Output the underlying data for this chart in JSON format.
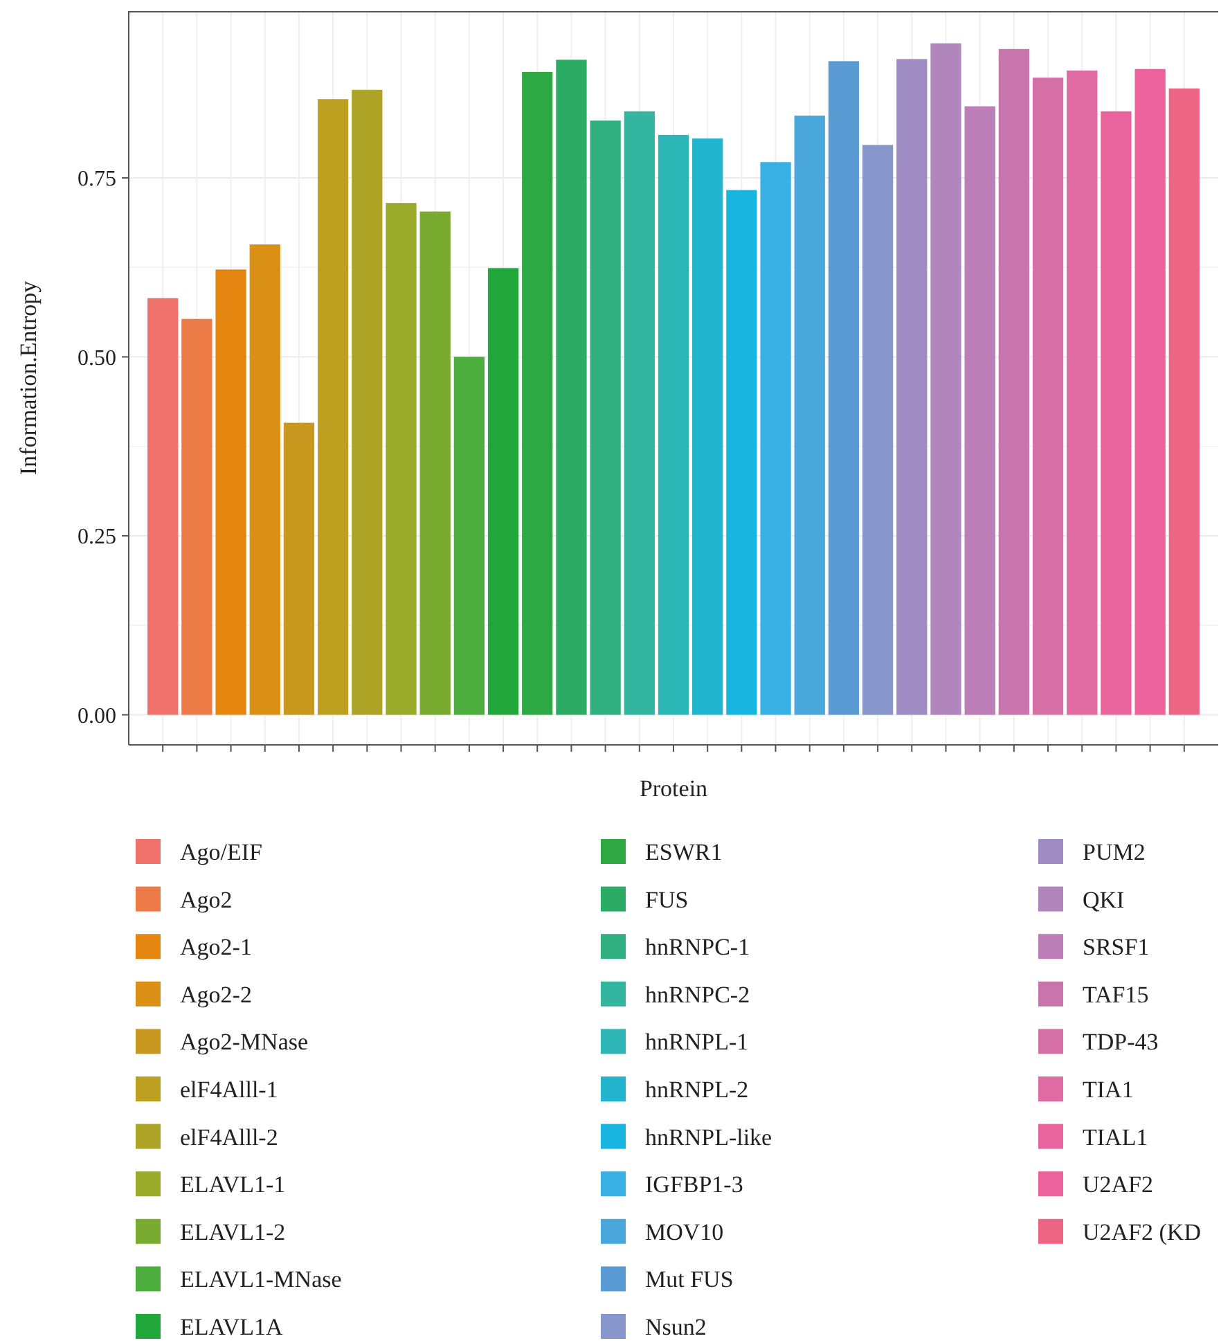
{
  "chart_data": {
    "type": "bar",
    "xlabel": "Protein",
    "ylabel": "Information.Entropy",
    "categories": [
      null,
      null,
      null,
      null,
      null,
      null,
      null,
      null,
      null,
      null,
      null,
      null,
      null,
      null,
      null,
      null,
      null,
      null,
      null,
      null,
      null,
      null,
      null,
      null,
      null,
      null,
      null,
      null,
      null,
      null,
      null
    ],
    "series": [
      {
        "name": "Ago/EIF",
        "color": "#ef716c",
        "values": [
          0.582,
          null,
          null,
          null,
          null,
          null,
          null,
          null,
          null,
          null,
          null,
          null,
          null,
          null,
          null,
          null,
          null,
          null,
          null,
          null,
          null,
          null,
          null,
          null,
          null,
          null,
          null,
          null,
          null,
          null,
          null
        ]
      },
      {
        "name": "Ago2",
        "color": "#ec7b48",
        "values": [
          null,
          0.553,
          null,
          null,
          null,
          null,
          null,
          null,
          null,
          null,
          null,
          null,
          null,
          null,
          null,
          null,
          null,
          null,
          null,
          null,
          null,
          null,
          null,
          null,
          null,
          null,
          null,
          null,
          null,
          null,
          null
        ]
      },
      {
        "name": "Ago2-1",
        "color": "#e4850f",
        "values": [
          null,
          null,
          0.622,
          null,
          null,
          null,
          null,
          null,
          null,
          null,
          null,
          null,
          null,
          null,
          null,
          null,
          null,
          null,
          null,
          null,
          null,
          null,
          null,
          null,
          null,
          null,
          null,
          null,
          null,
          null,
          null
        ]
      },
      {
        "name": "Ago2-2",
        "color": "#da8f15",
        "values": [
          null,
          null,
          null,
          0.657,
          null,
          null,
          null,
          null,
          null,
          null,
          null,
          null,
          null,
          null,
          null,
          null,
          null,
          null,
          null,
          null,
          null,
          null,
          null,
          null,
          null,
          null,
          null,
          null,
          null,
          null,
          null
        ]
      },
      {
        "name": "Ago2-MNase",
        "color": "#c9981f",
        "values": [
          null,
          null,
          null,
          null,
          0.408,
          null,
          null,
          null,
          null,
          null,
          null,
          null,
          null,
          null,
          null,
          null,
          null,
          null,
          null,
          null,
          null,
          null,
          null,
          null,
          null,
          null,
          null,
          null,
          null,
          null,
          null
        ]
      },
      {
        "name": "elF4Alll-1",
        "color": "#bea020",
        "values": [
          null,
          null,
          null,
          null,
          null,
          0.86,
          null,
          null,
          null,
          null,
          null,
          null,
          null,
          null,
          null,
          null,
          null,
          null,
          null,
          null,
          null,
          null,
          null,
          null,
          null,
          null,
          null,
          null,
          null,
          null,
          null
        ]
      },
      {
        "name": "elF4Alll-2",
        "color": "#aea526",
        "values": [
          null,
          null,
          null,
          null,
          null,
          null,
          0.873,
          null,
          null,
          null,
          null,
          null,
          null,
          null,
          null,
          null,
          null,
          null,
          null,
          null,
          null,
          null,
          null,
          null,
          null,
          null,
          null,
          null,
          null,
          null,
          null
        ]
      },
      {
        "name": "ELAVL1-1",
        "color": "#9aab2c",
        "values": [
          null,
          null,
          null,
          null,
          null,
          null,
          null,
          0.715,
          null,
          null,
          null,
          null,
          null,
          null,
          null,
          null,
          null,
          null,
          null,
          null,
          null,
          null,
          null,
          null,
          null,
          null,
          null,
          null,
          null,
          null,
          null
        ]
      },
      {
        "name": "ELAVL1-2",
        "color": "#79ab30",
        "values": [
          null,
          null,
          null,
          null,
          null,
          null,
          null,
          null,
          0.703,
          null,
          null,
          null,
          null,
          null,
          null,
          null,
          null,
          null,
          null,
          null,
          null,
          null,
          null,
          null,
          null,
          null,
          null,
          null,
          null,
          null,
          null
        ]
      },
      {
        "name": "ELAVL1-MNase",
        "color": "#4cae3d",
        "values": [
          null,
          null,
          null,
          null,
          null,
          null,
          null,
          null,
          null,
          0.5,
          null,
          null,
          null,
          null,
          null,
          null,
          null,
          null,
          null,
          null,
          null,
          null,
          null,
          null,
          null,
          null,
          null,
          null,
          null,
          null,
          null
        ]
      },
      {
        "name": "ELAVL1A",
        "color": "#22a83a",
        "values": [
          null,
          null,
          null,
          null,
          null,
          null,
          null,
          null,
          null,
          null,
          0.624,
          null,
          null,
          null,
          null,
          null,
          null,
          null,
          null,
          null,
          null,
          null,
          null,
          null,
          null,
          null,
          null,
          null,
          null,
          null,
          null
        ]
      },
      {
        "name": "ESWR1",
        "color": "#2ea843",
        "values": [
          null,
          null,
          null,
          null,
          null,
          null,
          null,
          null,
          null,
          null,
          null,
          0.898,
          null,
          null,
          null,
          null,
          null,
          null,
          null,
          null,
          null,
          null,
          null,
          null,
          null,
          null,
          null,
          null,
          null,
          null,
          null
        ]
      },
      {
        "name": "FUS",
        "color": "#2cab65",
        "values": [
          null,
          null,
          null,
          null,
          null,
          null,
          null,
          null,
          null,
          null,
          null,
          null,
          0.915,
          null,
          null,
          null,
          null,
          null,
          null,
          null,
          null,
          null,
          null,
          null,
          null,
          null,
          null,
          null,
          null,
          null,
          null
        ]
      },
      {
        "name": "hnRNPC-1",
        "color": "#30b080",
        "values": [
          null,
          null,
          null,
          null,
          null,
          null,
          null,
          null,
          null,
          null,
          null,
          null,
          null,
          0.83,
          null,
          null,
          null,
          null,
          null,
          null,
          null,
          null,
          null,
          null,
          null,
          null,
          null,
          null,
          null,
          null,
          null
        ]
      },
      {
        "name": "hnRNPC-2",
        "color": "#33b5a0",
        "values": [
          null,
          null,
          null,
          null,
          null,
          null,
          null,
          null,
          null,
          null,
          null,
          null,
          null,
          null,
          0.843,
          null,
          null,
          null,
          null,
          null,
          null,
          null,
          null,
          null,
          null,
          null,
          null,
          null,
          null,
          null,
          null
        ]
      },
      {
        "name": "hnRNPL-1",
        "color": "#2db6b6",
        "values": [
          null,
          null,
          null,
          null,
          null,
          null,
          null,
          null,
          null,
          null,
          null,
          null,
          null,
          null,
          null,
          0.81,
          null,
          null,
          null,
          null,
          null,
          null,
          null,
          null,
          null,
          null,
          null,
          null,
          null,
          null,
          null
        ]
      },
      {
        "name": "hnRNPL-2",
        "color": "#22b5cd",
        "values": [
          null,
          null,
          null,
          null,
          null,
          null,
          null,
          null,
          null,
          null,
          null,
          null,
          null,
          null,
          null,
          null,
          0.805,
          null,
          null,
          null,
          null,
          null,
          null,
          null,
          null,
          null,
          null,
          null,
          null,
          null,
          null
        ]
      },
      {
        "name": "hnRNPL-like",
        "color": "#17b5e0",
        "values": [
          null,
          null,
          null,
          null,
          null,
          null,
          null,
          null,
          null,
          null,
          null,
          null,
          null,
          null,
          null,
          null,
          null,
          0.733,
          null,
          null,
          null,
          null,
          null,
          null,
          null,
          null,
          null,
          null,
          null,
          null,
          null
        ]
      },
      {
        "name": "IGFBP1-3",
        "color": "#39b0e3",
        "values": [
          null,
          null,
          null,
          null,
          null,
          null,
          null,
          null,
          null,
          null,
          null,
          null,
          null,
          null,
          null,
          null,
          null,
          null,
          0.772,
          null,
          null,
          null,
          null,
          null,
          null,
          null,
          null,
          null,
          null,
          null,
          null
        ]
      },
      {
        "name": "MOV10",
        "color": "#4aa7dc",
        "values": [
          null,
          null,
          null,
          null,
          null,
          null,
          null,
          null,
          null,
          null,
          null,
          null,
          null,
          null,
          null,
          null,
          null,
          null,
          null,
          0.837,
          null,
          null,
          null,
          null,
          null,
          null,
          null,
          null,
          null,
          null,
          null
        ]
      },
      {
        "name": "Mut FUS",
        "color": "#5a9bd4",
        "values": [
          null,
          null,
          null,
          null,
          null,
          null,
          null,
          null,
          null,
          null,
          null,
          null,
          null,
          null,
          null,
          null,
          null,
          null,
          null,
          null,
          0.913,
          null,
          null,
          null,
          null,
          null,
          null,
          null,
          null,
          null,
          null
        ]
      },
      {
        "name": "Nsun2",
        "color": "#8797cb",
        "values": [
          null,
          null,
          null,
          null,
          null,
          null,
          null,
          null,
          null,
          null,
          null,
          null,
          null,
          null,
          null,
          null,
          null,
          null,
          null,
          null,
          null,
          0.796,
          null,
          null,
          null,
          null,
          null,
          null,
          null,
          null,
          null
        ]
      },
      {
        "name": "PUM2",
        "color": "#9f8cc3",
        "values": [
          null,
          null,
          null,
          null,
          null,
          null,
          null,
          null,
          null,
          null,
          null,
          null,
          null,
          null,
          null,
          null,
          null,
          null,
          null,
          null,
          null,
          null,
          0.916,
          null,
          null,
          null,
          null,
          null,
          null,
          null,
          null
        ]
      },
      {
        "name": "QKI",
        "color": "#b186bd",
        "values": [
          null,
          null,
          null,
          null,
          null,
          null,
          null,
          null,
          null,
          null,
          null,
          null,
          null,
          null,
          null,
          null,
          null,
          null,
          null,
          null,
          null,
          null,
          null,
          0.938,
          null,
          null,
          null,
          null,
          null,
          null,
          null
        ]
      },
      {
        "name": "SRSF1",
        "color": "#bc7eb6",
        "values": [
          null,
          null,
          null,
          null,
          null,
          null,
          null,
          null,
          null,
          null,
          null,
          null,
          null,
          null,
          null,
          null,
          null,
          null,
          null,
          null,
          null,
          null,
          null,
          null,
          0.85,
          null,
          null,
          null,
          null,
          null,
          null
        ]
      },
      {
        "name": "TAF15",
        "color": "#c975ad",
        "values": [
          null,
          null,
          null,
          null,
          null,
          null,
          null,
          null,
          null,
          null,
          null,
          null,
          null,
          null,
          null,
          null,
          null,
          null,
          null,
          null,
          null,
          null,
          null,
          null,
          null,
          0.93,
          null,
          null,
          null,
          null,
          null
        ]
      },
      {
        "name": "TDP-43",
        "color": "#d56fa6",
        "values": [
          null,
          null,
          null,
          null,
          null,
          null,
          null,
          null,
          null,
          null,
          null,
          null,
          null,
          null,
          null,
          null,
          null,
          null,
          null,
          null,
          null,
          null,
          null,
          null,
          null,
          null,
          0.89,
          null,
          null,
          null,
          null
        ]
      },
      {
        "name": "TIA1",
        "color": "#e06aa2",
        "values": [
          null,
          null,
          null,
          null,
          null,
          null,
          null,
          null,
          null,
          null,
          null,
          null,
          null,
          null,
          null,
          null,
          null,
          null,
          null,
          null,
          null,
          null,
          null,
          null,
          null,
          null,
          null,
          0.9,
          null,
          null,
          null
        ]
      },
      {
        "name": "TIAL1",
        "color": "#e8649c",
        "values": [
          null,
          null,
          null,
          null,
          null,
          null,
          null,
          null,
          null,
          null,
          null,
          null,
          null,
          null,
          null,
          null,
          null,
          null,
          null,
          null,
          null,
          null,
          null,
          null,
          null,
          null,
          null,
          null,
          0.843,
          null,
          null
        ]
      },
      {
        "name": "U2AF2",
        "color": "#ec629a",
        "values": [
          null,
          null,
          null,
          null,
          null,
          null,
          null,
          null,
          null,
          null,
          null,
          null,
          null,
          null,
          null,
          null,
          null,
          null,
          null,
          null,
          null,
          null,
          null,
          null,
          null,
          null,
          null,
          null,
          null,
          0.902,
          null
        ]
      },
      {
        "name": "U2AF2 (KD",
        "color": "#ec6585",
        "values": [
          null,
          null,
          null,
          null,
          null,
          null,
          null,
          null,
          null,
          null,
          null,
          null,
          null,
          null,
          null,
          null,
          null,
          null,
          null,
          null,
          null,
          null,
          null,
          null,
          null,
          null,
          null,
          null,
          null,
          null,
          0.875
        ]
      }
    ],
    "ylim": [
      -0.042,
      0.983
    ],
    "yticks": [
      {
        "value": 0,
        "label": "0.00"
      },
      {
        "value": 0.25,
        "label": "0.25"
      },
      {
        "value": 0.5,
        "label": "0.50"
      },
      {
        "value": 0.75,
        "label": "0.75"
      }
    ],
    "grid": true,
    "legend": "bottom",
    "tick_labels": "y"
  }
}
